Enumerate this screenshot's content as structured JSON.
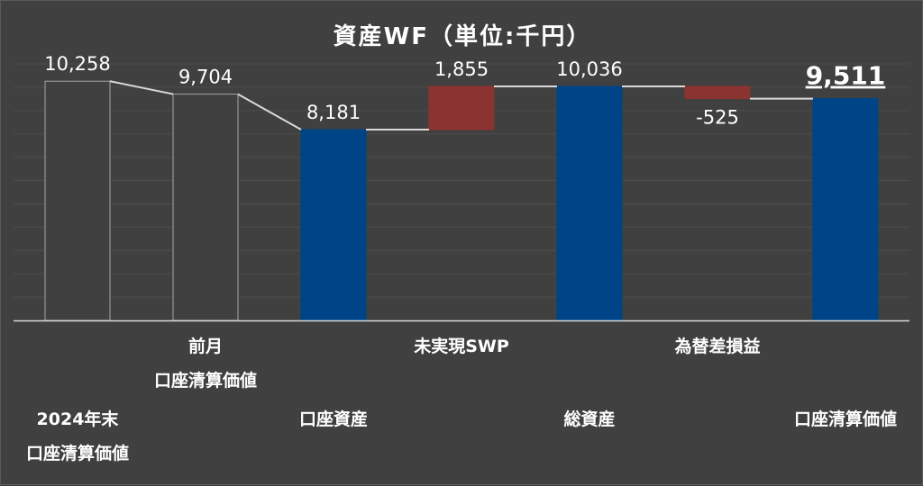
{
  "chart_data": {
    "type": "bar",
    "title": "資産WF（単位:千円）",
    "xlabel": "",
    "ylabel": "",
    "ylim": [
      0,
      11000
    ],
    "grid": true,
    "legend": "none",
    "categories": [
      [
        "2024年末",
        "口座清算価値"
      ],
      [
        "前月",
        "口座清算価値"
      ],
      [
        "口座資産"
      ],
      [
        "未実現SWP"
      ],
      [
        "総資産"
      ],
      [
        "為替差損益"
      ],
      [
        "口座清算価値"
      ]
    ],
    "bars": [
      {
        "kind": "total",
        "start": 0,
        "end": 10258,
        "label": "10,258",
        "color": "#404040",
        "stroke": "#a6a6a6"
      },
      {
        "kind": "total",
        "start": 0,
        "end": 9704,
        "label": "9,704",
        "color": "#404040",
        "stroke": "#a6a6a6"
      },
      {
        "kind": "total",
        "start": 0,
        "end": 8181,
        "label": "8,181",
        "color": "#004488",
        "stroke": "#004488"
      },
      {
        "kind": "delta",
        "start": 8181,
        "end": 10036,
        "label": "1,855",
        "color": "#8b3330",
        "stroke": "#8b3330"
      },
      {
        "kind": "total",
        "start": 0,
        "end": 10036,
        "label": "10,036",
        "color": "#004488",
        "stroke": "#004488"
      },
      {
        "kind": "delta",
        "start": 10036,
        "end": 9511,
        "label": "-525",
        "color": "#8b3330",
        "stroke": "#8b3330"
      },
      {
        "kind": "total",
        "start": 0,
        "end": 9511,
        "label": "9,511",
        "color": "#004488",
        "stroke": "#004488",
        "emphasis": true
      }
    ],
    "connector_color": "#d9d9d9",
    "gridline_color": "#4d4d4d"
  }
}
